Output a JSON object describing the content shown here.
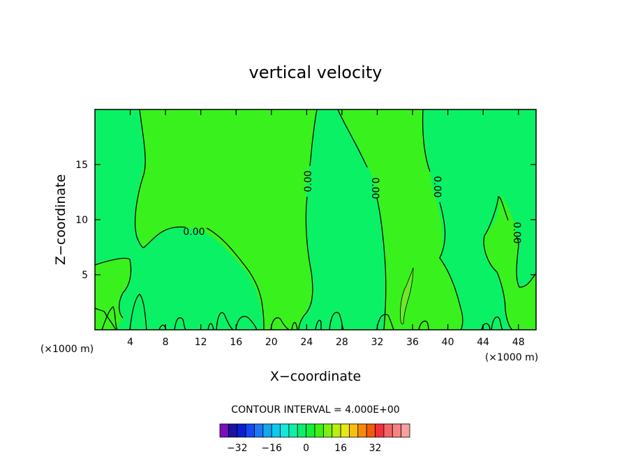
{
  "chart_data": {
    "type": "contour",
    "title": "vertical velocity",
    "xlabel": "X−coordinate",
    "ylabel": "Z−coordinate",
    "x_unit": "(×1000 m)",
    "xlim": [
      0,
      50
    ],
    "ylim": [
      0,
      20
    ],
    "x_ticks": [
      "4",
      "8",
      "12",
      "16",
      "20",
      "24",
      "28",
      "32",
      "36",
      "40",
      "44",
      "48"
    ],
    "y_ticks": [
      "5",
      "10",
      "15"
    ],
    "contour_labels": [
      "0.00",
      "0.00",
      "0.00",
      "0.00",
      "0.00"
    ],
    "contour_interval_text": "CONTOUR INTERVAL = 4.000E+00",
    "colorbar": {
      "tick_labels": [
        "−32",
        "−16",
        "0",
        "16",
        "32"
      ],
      "tick_values": [
        -32,
        -16,
        0,
        16,
        32
      ],
      "colors": [
        "#7a10b8",
        "#1a14a0",
        "#0a1ed2",
        "#1448f0",
        "#1e78f5",
        "#14a8f0",
        "#0acbee",
        "#12e8dc",
        "#0ef0a8",
        "#0cee6e",
        "#12f03c",
        "#40f010",
        "#7cf010",
        "#b8ee12",
        "#e8e814",
        "#f8c00c",
        "#f88a08",
        "#f45a0c",
        "#f2303c",
        "#f46464",
        "#f88282",
        "#f8a0a0"
      ]
    },
    "fill_colors": {
      "low_band": "#0bf165",
      "high_band": "#39f21d"
    }
  }
}
